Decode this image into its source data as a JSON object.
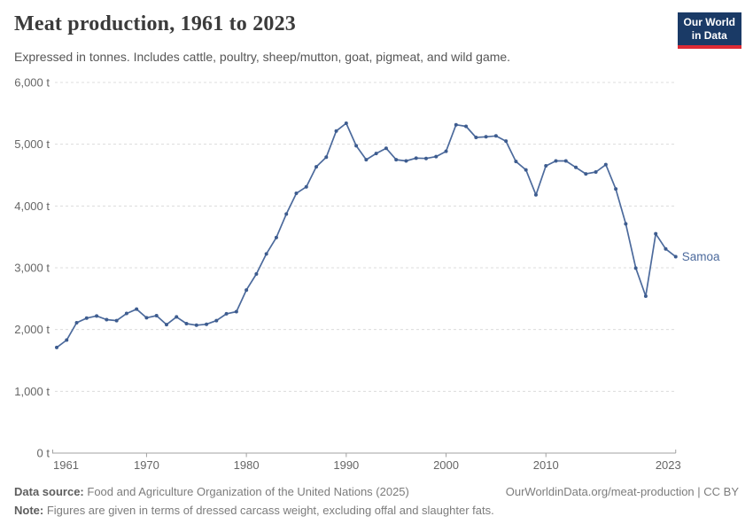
{
  "header": {
    "title": "Meat production, 1961 to 2023",
    "subtitle": "Expressed in tonnes. Includes cattle, poultry, sheep/mutton, goat, pigmeat, and wild game."
  },
  "logo": {
    "line1": "Our World",
    "line2": "in Data",
    "bg_color": "#1a3a66",
    "bar_color": "#dd2a34"
  },
  "chart_data": {
    "type": "line",
    "title": "Meat production, 1961 to 2023",
    "unit": "t",
    "xlabel": "",
    "ylabel": "",
    "xlim": [
      1961,
      2023
    ],
    "ylim": [
      0,
      6000
    ],
    "xticks": [
      1961,
      1970,
      1980,
      1990,
      2000,
      2010,
      2023
    ],
    "yticks": [
      0,
      1000,
      2000,
      3000,
      4000,
      5000,
      6000
    ],
    "ytick_suffix": " t",
    "grid": "dashed-horizontal",
    "legend_position": "end-of-line-label",
    "x": [
      1961,
      1962,
      1963,
      1964,
      1965,
      1966,
      1967,
      1968,
      1969,
      1970,
      1971,
      1972,
      1973,
      1974,
      1975,
      1976,
      1977,
      1978,
      1979,
      1980,
      1981,
      1982,
      1983,
      1984,
      1985,
      1986,
      1987,
      1988,
      1989,
      1990,
      1991,
      1992,
      1993,
      1994,
      1995,
      1996,
      1997,
      1998,
      1999,
      2000,
      2001,
      2002,
      2003,
      2004,
      2005,
      2006,
      2007,
      2008,
      2009,
      2010,
      2011,
      2012,
      2013,
      2014,
      2015,
      2016,
      2017,
      2018,
      2019,
      2020,
      2021,
      2022,
      2023
    ],
    "series": [
      {
        "name": "Samoa",
        "color": "#4c6a9c",
        "values": [
          1710,
          1830,
          2110,
          2185,
          2220,
          2160,
          2145,
          2260,
          2330,
          2190,
          2225,
          2080,
          2205,
          2095,
          2070,
          2085,
          2145,
          2255,
          2290,
          2640,
          2900,
          3225,
          3490,
          3870,
          4205,
          4310,
          4635,
          4790,
          5215,
          5340,
          4975,
          4750,
          4850,
          4935,
          4750,
          4730,
          4775,
          4770,
          4800,
          4885,
          5315,
          5290,
          5110,
          5120,
          5135,
          5050,
          4720,
          4585,
          4180,
          4650,
          4730,
          4730,
          4625,
          4520,
          4550,
          4670,
          4275,
          3710,
          2995,
          2540,
          3550,
          3305,
          3180
        ]
      }
    ]
  },
  "colors": {
    "line": "#4c6a9c",
    "marker": "#3d5c8f",
    "gridline": "#dcdcdc",
    "axis_line": "#a1a1a1",
    "axis_text": "#666666"
  },
  "footer": {
    "source_label": "Data source:",
    "source_text": "Food and Agriculture Organization of the United Nations (2025)",
    "link_text": "OurWorldinData.org/meat-production | CC BY",
    "note_label": "Note:",
    "note_text": "Figures are given in terms of dressed carcass weight, excluding offal and slaughter fats."
  }
}
